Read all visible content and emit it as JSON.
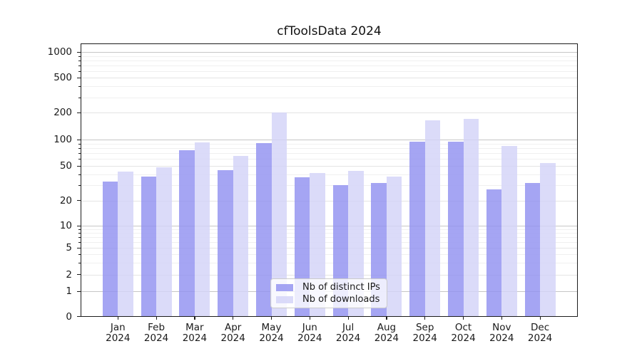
{
  "title": "cfToolsData 2024",
  "chart_data": {
    "type": "bar",
    "title": "cfToolsData 2024",
    "categories": [
      "Jan 2024",
      "Feb 2024",
      "Mar 2024",
      "Apr 2024",
      "May 2024",
      "Jun 2024",
      "Jul 2024",
      "Aug 2024",
      "Sep 2024",
      "Oct 2024",
      "Nov 2024",
      "Dec 2024"
    ],
    "series": [
      {
        "name": "Nb of distinct IPs",
        "color": "rgba(145,145,240,0.82)",
        "values": [
          33,
          38,
          76,
          45,
          91,
          37,
          30,
          32,
          95,
          94,
          27,
          32
        ]
      },
      {
        "name": "Nb of downloads",
        "color": "rgba(211,211,248,0.82)",
        "values": [
          43,
          48,
          93,
          65,
          200,
          42,
          44,
          38,
          165,
          170,
          85,
          54
        ]
      }
    ],
    "yscale": "symlog",
    "y_ticks": [
      0,
      1,
      2,
      5,
      10,
      20,
      50,
      100,
      200,
      500,
      1000
    ],
    "y_minor_ticks": [
      3,
      4,
      6,
      7,
      8,
      9,
      30,
      40,
      60,
      70,
      80,
      90,
      300,
      400,
      600,
      700,
      800,
      900
    ],
    "ylim": [
      0,
      1300
    ],
    "xlabel": "",
    "ylabel": "",
    "grid": true,
    "legend_position": "lower center",
    "grid_major_color": "#c6c6c6",
    "grid_mid_color": "#e4e4e4",
    "grid_minor_color": "#f0f0f0"
  }
}
